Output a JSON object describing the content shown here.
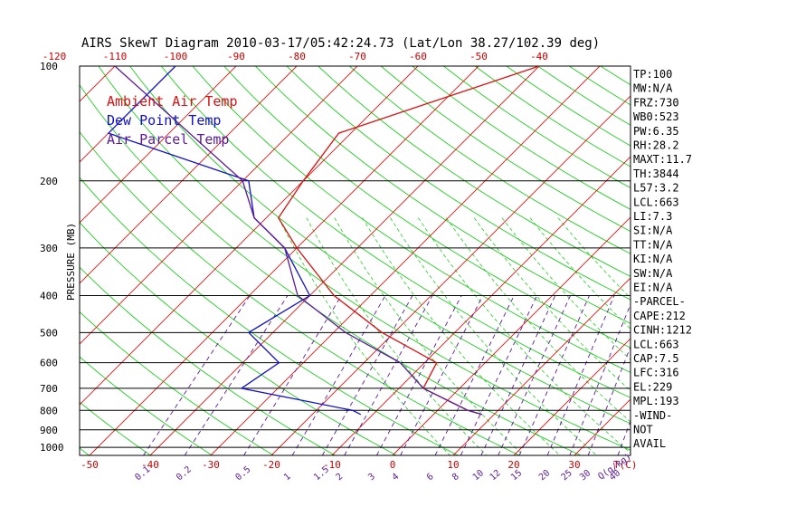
{
  "chart_data": {
    "type": "skewt",
    "title": "AIRS SkewT Diagram 2010-03-17/05:42:24.73 (Lat/Lon 38.27/102.39 deg)",
    "ylabel": "PRESSURE (MB)",
    "pressure_labels": [
      "100",
      "200",
      "300",
      "400",
      "500",
      "600",
      "700",
      "800",
      "900",
      "1000"
    ],
    "top_temp_ticks": [
      "-120",
      "-110",
      "-100",
      "-90",
      "-80",
      "-70",
      "-60",
      "-50",
      "-40"
    ],
    "bottom_temp_ticks": [
      "-50",
      "-40",
      "-30",
      "-20",
      "-10",
      "0",
      "10",
      "20",
      "30"
    ],
    "bottom_axis_label": "T(C)",
    "mixing_ratio_labels": [
      "0.1",
      "0.2",
      "0.5",
      "1",
      "1.5",
      "2",
      "3",
      "4",
      "6",
      "8",
      "10",
      "12",
      "15",
      "20",
      "25",
      "30",
      "40"
    ],
    "mixing_ratio_unit": "Q(g/kg)",
    "legend": [
      {
        "name": "Ambient Air Temp",
        "color": "#dd1111"
      },
      {
        "name": "Dew Point Temp",
        "color": "#1111cc"
      },
      {
        "name": "Air Parcel Temp",
        "color": "#5b1a9c"
      }
    ],
    "series": [
      {
        "name": "Ambient Air Temp",
        "color": "#dd1111",
        "points": [
          [
            100,
            -40
          ],
          [
            150,
            -62
          ],
          [
            200,
            -60
          ],
          [
            250,
            -58
          ],
          [
            300,
            -50
          ],
          [
            400,
            -36
          ],
          [
            500,
            -22
          ],
          [
            600,
            -8
          ],
          [
            700,
            -6
          ],
          [
            800,
            5
          ],
          [
            820,
            8
          ]
        ]
      },
      {
        "name": "Dew Point Temp",
        "color": "#1111cc",
        "points": [
          [
            100,
            -100
          ],
          [
            150,
            -100
          ],
          [
            200,
            -69
          ],
          [
            250,
            -62
          ],
          [
            300,
            -52
          ],
          [
            400,
            -40
          ],
          [
            500,
            -44
          ],
          [
            600,
            -34
          ],
          [
            700,
            -36
          ],
          [
            800,
            -14
          ],
          [
            820,
            -12
          ]
        ]
      },
      {
        "name": "Air Parcel Temp",
        "color": "#5b1a9c",
        "points": [
          [
            100,
            -110
          ],
          [
            200,
            -70
          ],
          [
            250,
            -62
          ],
          [
            300,
            -52
          ],
          [
            400,
            -42
          ],
          [
            500,
            -28
          ],
          [
            600,
            -14
          ],
          [
            700,
            -6
          ],
          [
            800,
            5
          ],
          [
            820,
            8
          ]
        ]
      }
    ],
    "indices": [
      "TP:100",
      "MW:N/A",
      "FRZ:730",
      "WB0:523",
      "PW:6.35",
      "RH:28.2",
      "MAXT:11.7",
      "TH:3844",
      "L57:3.2",
      "LCL:663",
      "LI:7.3",
      "SI:N/A",
      "TT:N/A",
      "KI:N/A",
      "SW:N/A",
      "EI:N/A",
      "-PARCEL-",
      "CAPE:212",
      "CINH:1212",
      "LCL:663",
      "CAP:7.5",
      "LFC:316",
      "EL:229",
      "MPL:193",
      "-WIND-",
      "NOT",
      "AVAIL"
    ]
  },
  "colors": {
    "isotherm": "#dd1111",
    "dry_adiabat": "#22cc22",
    "mixing_ratio": "#5b1a9c",
    "frame": "#000000"
  }
}
